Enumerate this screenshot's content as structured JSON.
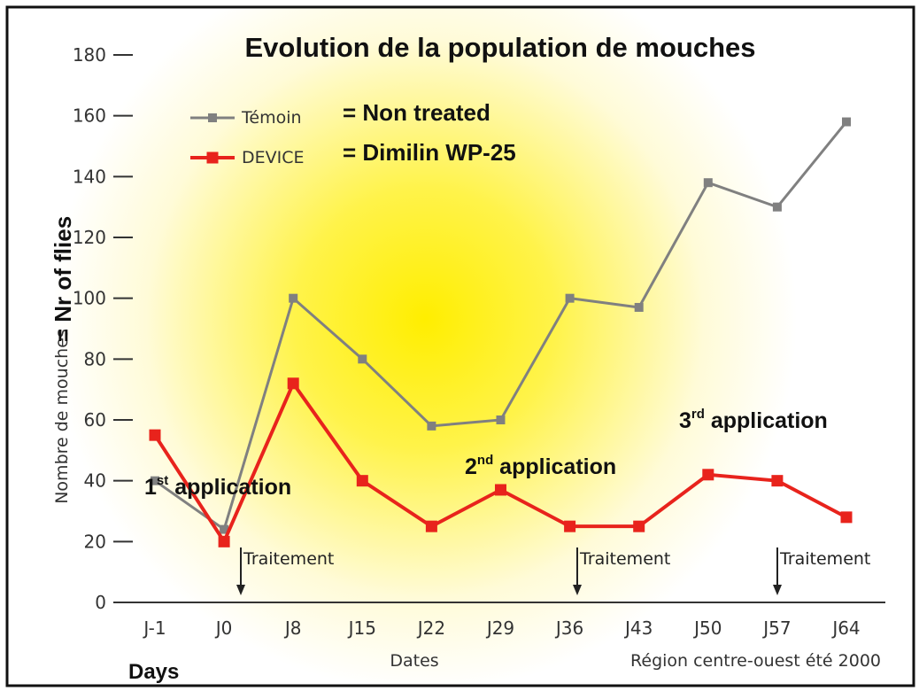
{
  "chart_data": {
    "type": "line",
    "title": "Evolution de la population de mouches",
    "categories": [
      "J-1",
      "J0",
      "J8",
      "J15",
      "J22",
      "J29",
      "J36",
      "J43",
      "J50",
      "J57",
      "J64"
    ],
    "series": [
      {
        "name": "Témoin",
        "legend_note": "= Non treated",
        "color": "#808080",
        "values": [
          40,
          24,
          100,
          80,
          58,
          60,
          100,
          97,
          138,
          130,
          158
        ]
      },
      {
        "name": "DEVICE",
        "legend_note": "= Dimilin WP-25",
        "color": "#e8231c",
        "values": [
          55,
          20,
          72,
          40,
          25,
          37,
          25,
          25,
          42,
          40,
          28
        ]
      }
    ],
    "ylim": [
      0,
      180
    ],
    "yticks": [
      0,
      20,
      40,
      60,
      80,
      100,
      120,
      140,
      160,
      180
    ],
    "y_label": "Nombre de mouches",
    "y_label_note": "= Nr of flies",
    "x_label": "Dates",
    "x_label_note": "Days",
    "source": "Région centre-ouest été 2000",
    "applications": [
      {
        "number": "1",
        "suffix": "st",
        "text": " application"
      },
      {
        "number": "2",
        "suffix": "nd",
        "text": " application"
      },
      {
        "number": "3",
        "suffix": "rd",
        "text": " application"
      }
    ],
    "treatments": [
      "Traitement",
      "Traitement",
      "Traitement"
    ]
  }
}
